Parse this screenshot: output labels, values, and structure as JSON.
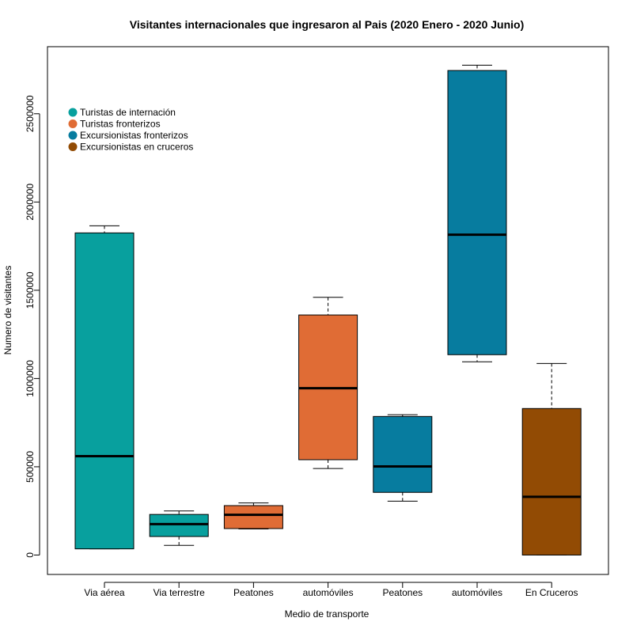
{
  "chart_data": {
    "type": "boxplot",
    "title": "Visitantes internacionales que ingresaron al Pais (2020 Enero - 2020 Junio)",
    "xlabel": "Medio de transporte",
    "ylabel": "Numero de visitantes",
    "ylim": [
      -110000,
      2880000
    ],
    "yticks": [
      0,
      500000,
      1000000,
      1500000,
      2000000,
      2500000
    ],
    "ytick_labels": [
      "0",
      "500000",
      "1000000",
      "1500000",
      "2000000",
      "2500000"
    ],
    "categories": [
      "Via aérea",
      "Via terrestre",
      "Peatones",
      "automóviles",
      "Peatones",
      "automóviles",
      "En Cruceros"
    ],
    "boxes": [
      {
        "category": "Via aérea",
        "group": 0,
        "min": 35000,
        "q1": 35000,
        "median": 560000,
        "q3": 1825000,
        "max": 1865000
      },
      {
        "category": "Via terrestre",
        "group": 0,
        "min": 55000,
        "q1": 105000,
        "median": 175000,
        "q3": 230000,
        "max": 250000
      },
      {
        "category": "Peatones",
        "group": 1,
        "min": 148000,
        "q1": 150000,
        "median": 228000,
        "q3": 280000,
        "max": 295000
      },
      {
        "category": "automóviles",
        "group": 1,
        "min": 490000,
        "q1": 540000,
        "median": 945000,
        "q3": 1360000,
        "max": 1460000
      },
      {
        "category": "Peatones",
        "group": 2,
        "min": 305000,
        "q1": 355000,
        "median": 502000,
        "q3": 785000,
        "max": 795000
      },
      {
        "category": "automóviles",
        "group": 2,
        "min": 1095000,
        "q1": 1135000,
        "median": 1815000,
        "q3": 2745000,
        "max": 2775000
      },
      {
        "category": "En Cruceros",
        "group": 3,
        "min": 0,
        "q1": 0,
        "median": 330000,
        "q3": 830000,
        "max": 1085000
      }
    ],
    "legend": {
      "position": "top-left",
      "entries": [
        {
          "label": "Turistas de internación",
          "color": "#08A09E"
        },
        {
          "label": "Turistas fronterizos",
          "color": "#E06C35"
        },
        {
          "label": "Excursionistas fronterizos",
          "color": "#077C9F"
        },
        {
          "label": "Excursionistas en cruceros",
          "color": "#924B04"
        }
      ]
    },
    "grid": false
  }
}
